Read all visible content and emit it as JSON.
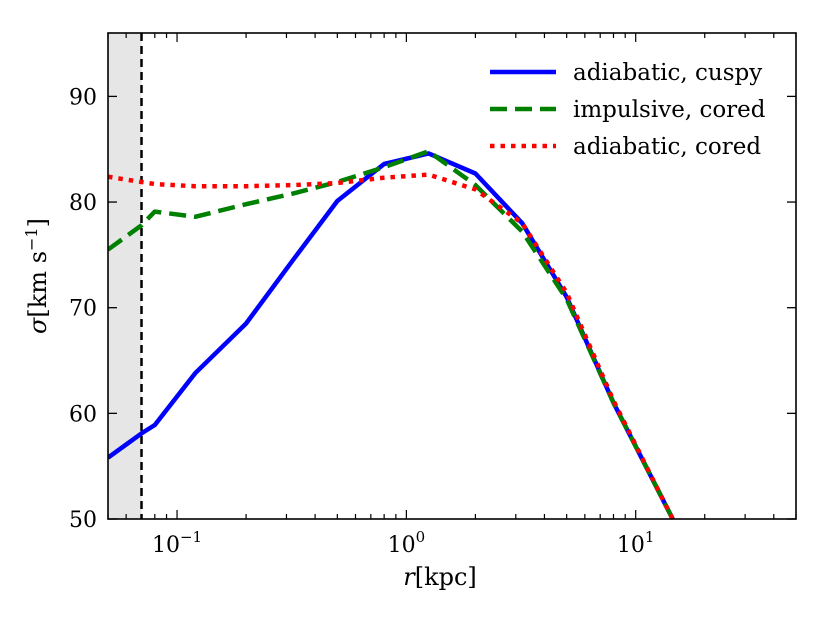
{
  "chart_data": {
    "type": "line",
    "title": "",
    "xlabel_var": "r",
    "xlabel_unit": "[kpc]",
    "ylabel_var": "σ",
    "ylabel_unit": "[km s",
    "ylabel_sup": "−1",
    "ylabel_close": "]",
    "xscale": "log",
    "xlim": [
      0.05,
      50
    ],
    "ylim": [
      50,
      96
    ],
    "x_major_ticks": [
      {
        "value": 0.1,
        "base": "10",
        "exp": "−1"
      },
      {
        "value": 1,
        "base": "10",
        "exp": "0"
      },
      {
        "value": 10,
        "base": "10",
        "exp": "1"
      }
    ],
    "y_ticks": [
      {
        "value": 50,
        "label": "50"
      },
      {
        "value": 60,
        "label": "60"
      },
      {
        "value": 70,
        "label": "70"
      },
      {
        "value": 80,
        "label": "80"
      },
      {
        "value": 90,
        "label": "90"
      }
    ],
    "shaded_region": {
      "x_from": 0.05,
      "x_to": 0.07,
      "color": "#e6e6e6"
    },
    "vertical_line": {
      "x": 0.07,
      "style": "dashed",
      "color": "#000000"
    },
    "series": [
      {
        "name": "adiabatic, cuspy",
        "color": "#0000ff",
        "style": "solid",
        "x": [
          0.05,
          0.07,
          0.08,
          0.12,
          0.2,
          0.32,
          0.5,
          0.8,
          1.25,
          2.0,
          3.2,
          5.0,
          8.0,
          14.5
        ],
        "y": [
          55.8,
          58.1,
          58.9,
          63.8,
          68.5,
          74.5,
          80.1,
          83.6,
          84.6,
          82.7,
          78.0,
          71.0,
          61.0,
          50.0
        ]
      },
      {
        "name": "impulsive, cored",
        "color": "#008000",
        "style": "dashed",
        "x": [
          0.05,
          0.07,
          0.08,
          0.12,
          0.2,
          0.32,
          0.5,
          0.8,
          1.25,
          2.0,
          3.2,
          5.0,
          8.0,
          14.5
        ],
        "y": [
          75.5,
          77.8,
          79.1,
          78.6,
          79.8,
          80.8,
          81.9,
          83.3,
          84.8,
          81.6,
          77.2,
          70.8,
          61.0,
          50.0
        ]
      },
      {
        "name": "adiabatic, cored",
        "color": "#ff0000",
        "style": "dotted",
        "x": [
          0.05,
          0.07,
          0.08,
          0.12,
          0.2,
          0.32,
          0.5,
          0.8,
          1.25,
          2.0,
          3.2,
          5.0,
          8.0,
          14.5
        ],
        "y": [
          82.4,
          81.9,
          81.7,
          81.5,
          81.5,
          81.6,
          81.8,
          82.3,
          82.6,
          81.2,
          78.0,
          71.4,
          61.2,
          50.0
        ]
      }
    ],
    "legend_location": "top-right"
  }
}
